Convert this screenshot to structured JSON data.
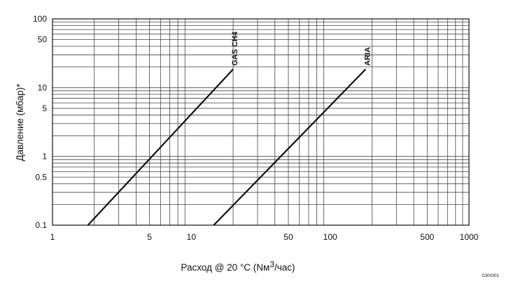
{
  "chart_data": {
    "type": "line",
    "x_scale": "log",
    "y_scale": "log",
    "xlim": [
      1,
      1000
    ],
    "ylim": [
      0.1,
      100
    ],
    "grid": true,
    "xlabel_prefix": "Расход @ 20 °C (Nм",
    "xlabel_sup": "3",
    "xlabel_suffix": "/час)",
    "ylabel": "Давление (мбар)*",
    "x_ticks": [
      1,
      5,
      10,
      50,
      100,
      500,
      1000
    ],
    "x_tick_labels": [
      "1",
      "5",
      "10",
      "50",
      "100",
      "500",
      "1000"
    ],
    "y_ticks": [
      0.1,
      0.5,
      1,
      5,
      10,
      50,
      100
    ],
    "y_tick_labels": [
      "0.1",
      "0.5",
      "1",
      "5",
      "10",
      "50",
      "100"
    ],
    "series": [
      {
        "name": "GAS CH4",
        "points": [
          [
            1.8,
            0.1
          ],
          [
            20,
            18.5
          ]
        ]
      },
      {
        "name": "ARIA",
        "points": [
          [
            14.5,
            0.1
          ],
          [
            180,
            18.5
          ]
        ]
      }
    ],
    "corner_code": "G300301"
  }
}
